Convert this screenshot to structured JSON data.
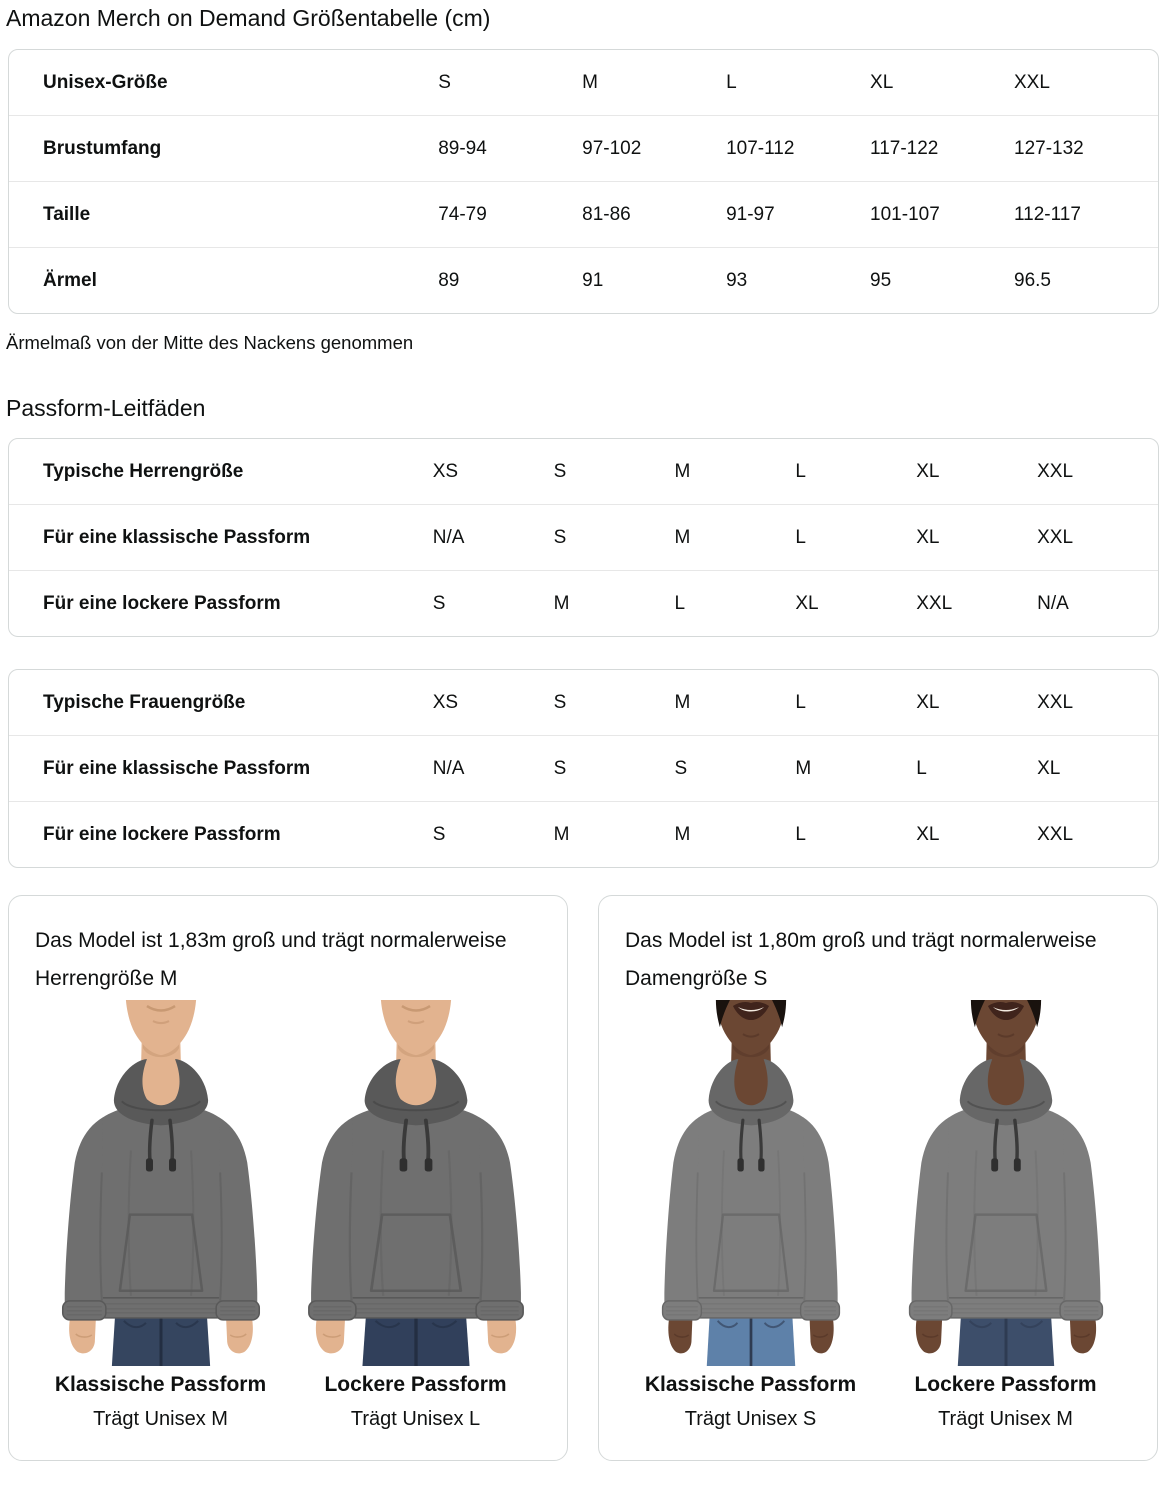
{
  "page": {
    "title": "Amazon Merch on Demand Größentabelle (cm)",
    "note": "Ärmelmaß von der Mitte des Nackens genommen",
    "fit_guides_heading": "Passform-Leitfäden"
  },
  "size_table": {
    "rows": [
      {
        "label": "Unisex-Größe",
        "values": [
          "S",
          "M",
          "L",
          "XL",
          "XXL"
        ]
      },
      {
        "label": "Brustumfang",
        "values": [
          "89-94",
          "97-102",
          "107-112",
          "117-122",
          "127-132"
        ]
      },
      {
        "label": "Taille",
        "values": [
          "74-79",
          "81-86",
          "91-97",
          "101-107",
          "112-117"
        ]
      },
      {
        "label": "Ärmel",
        "values": [
          "89",
          "91",
          "93",
          "95",
          "96.5"
        ]
      }
    ]
  },
  "fit_table_men": {
    "rows": [
      {
        "label": "Typische Herrengröße",
        "values": [
          "XS",
          "S",
          "M",
          "L",
          "XL",
          "XXL"
        ]
      },
      {
        "label": "Für eine klassische Passform",
        "values": [
          "N/A",
          "S",
          "M",
          "L",
          "XL",
          "XXL"
        ]
      },
      {
        "label": "Für eine lockere Passform",
        "values": [
          "S",
          "M",
          "L",
          "XL",
          "XXL",
          "N/A"
        ]
      }
    ]
  },
  "fit_table_women": {
    "rows": [
      {
        "label": "Typische Frauengröße",
        "values": [
          "XS",
          "S",
          "M",
          "L",
          "XL",
          "XXL"
        ]
      },
      {
        "label": "Für eine klassische Passform",
        "values": [
          "N/A",
          "S",
          "S",
          "M",
          "L",
          "XL"
        ]
      },
      {
        "label": "Für eine lockere Passform",
        "values": [
          "S",
          "M",
          "M",
          "L",
          "XL",
          "XXL"
        ]
      }
    ]
  },
  "model_cards": [
    {
      "description": "Das Model ist 1,83m groß und trägt normalerweise Herrengröße M",
      "figures": [
        {
          "fit_label": "Klassische Passform",
          "wears_label": "Trägt Unisex M",
          "model": "male",
          "loose": false,
          "jeans": "#35455F"
        },
        {
          "fit_label": "Lockere Passform",
          "wears_label": "Trägt Unisex L",
          "model": "male",
          "loose": true,
          "jeans": "#31405B"
        }
      ]
    },
    {
      "description": "Das Model ist 1,80m groß und trägt normalerweise Damengröße S",
      "figures": [
        {
          "fit_label": "Klassische Passform",
          "wears_label": "Trägt Unisex S",
          "model": "female",
          "loose": false,
          "jeans": "#5E81A9"
        },
        {
          "fit_label": "Lockere Passform",
          "wears_label": "Trägt Unisex M",
          "model": "female",
          "loose": true,
          "jeans": "#3D4E6A"
        }
      ]
    }
  ],
  "colors": {
    "text": "#0F1111",
    "table_border": "#D5D9D9",
    "row_divider": "#E7E7E7",
    "card_border": "#D5D9D9",
    "male_skin": "#E2B38F",
    "male_skin_shadow": "#BE8E67",
    "female_skin": "#6B4733",
    "female_skin_shadow": "#503225",
    "female_lips": "#40241C",
    "female_teeth": "#F2E9DF",
    "female_hair": "#19120E",
    "male_hoodie": "#6F6F6F",
    "male_hoodie_shade": "#595959",
    "female_hoodie": "#7D7D7D",
    "female_hoodie_shade": "#676767",
    "male_jeans_shade": "#232E42",
    "female_jeans_shade": "#2E3B52",
    "drawstring": "#3A3A3A"
  }
}
